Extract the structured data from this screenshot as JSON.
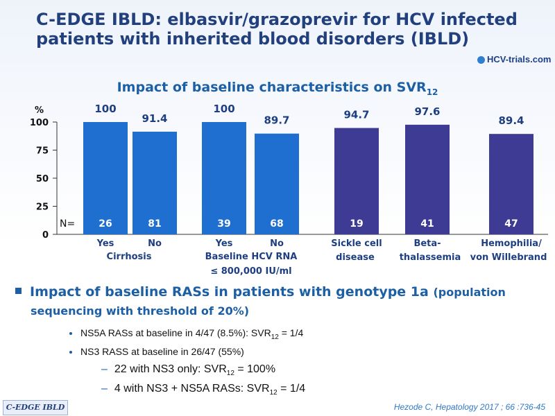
{
  "title": "C-EDGE IBLD: elbasvir/grazoprevir for HCV infected patients with inherited blood disorders (IBLD)",
  "logo_text": "HCV-trials.com",
  "chart_data": {
    "type": "bar",
    "title": "Impact of baseline characteristics on SVR",
    "title_sub": "12",
    "ylabel": "%",
    "ylim": [
      0,
      100
    ],
    "yticks": [
      0,
      25,
      50,
      75,
      100
    ],
    "n_label": "N=",
    "bars": [
      {
        "label": "Yes",
        "value": 100,
        "value_label": "100",
        "n": "26",
        "color": "#1f6fd1"
      },
      {
        "label": "No",
        "value": 91.4,
        "value_label": "91.4",
        "n": "81",
        "color": "#1f6fd1"
      },
      {
        "label": "Yes",
        "value": 100,
        "value_label": "100",
        "n": "39",
        "color": "#1f6fd1"
      },
      {
        "label": "No",
        "value": 89.7,
        "value_label": "89.7",
        "n": "68",
        "color": "#1f6fd1"
      },
      {
        "label": "Sickle cell",
        "value": 94.7,
        "value_label": "94.7",
        "n": "19",
        "color": "#3d3b94"
      },
      {
        "label": "Beta-",
        "value": 97.6,
        "value_label": "97.6",
        "n": "41",
        "color": "#3d3b94"
      },
      {
        "label": "Hemophilia/",
        "value": 89.4,
        "value_label": "89.4",
        "n": "47",
        "color": "#3d3b94"
      }
    ],
    "group_labels": [
      {
        "lines": [
          "Cirrhosis"
        ]
      },
      {
        "lines": [
          "Baseline HCV RNA",
          "≤ 800,000 IU/ml"
        ]
      },
      {
        "lines": [
          "disease"
        ]
      },
      {
        "lines": [
          "thalassemia"
        ]
      },
      {
        "lines": [
          "von Willebrand"
        ]
      }
    ]
  },
  "bullets": {
    "main": "Impact of baseline RASs in patients with genotype 1a",
    "main_paren": "(population",
    "main_cont": "sequencing with threshold of 20%)",
    "sub1": "NS5A RASs at baseline in 4/47 (8.5%): SVR",
    "sub1_sub": "12",
    "sub1_end": " = 1/4",
    "sub2": "NS3 RASS at baseline in 26/47 (55%)",
    "sub3": "22 with NS3 only: SVR",
    "sub3_sub": "12",
    "sub3_end": " = 100%",
    "sub4": "4 with NS3 + NS5A RASs: SVR",
    "sub4_sub": "12",
    "sub4_end": " = 1/4"
  },
  "footer_tag": "C-EDGE IBLD",
  "citation": "Hezode C, Hepatology 2017 ; 66 :736-45"
}
